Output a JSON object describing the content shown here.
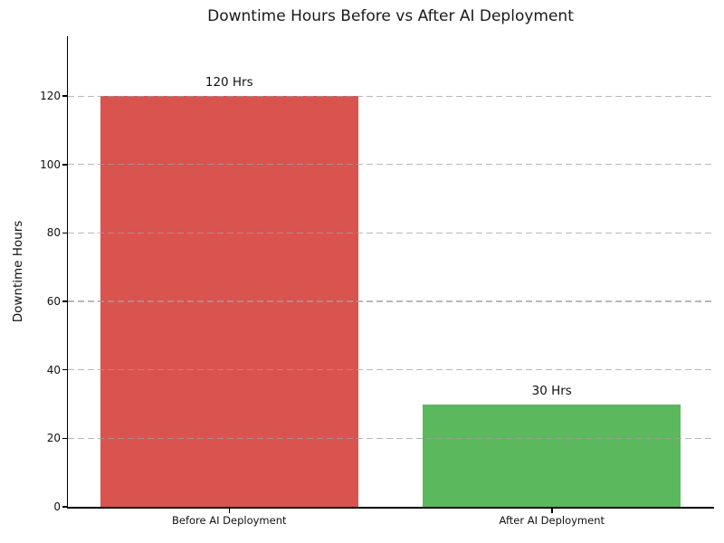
{
  "chart_data": {
    "type": "bar",
    "title": "Downtime Hours Before vs After AI Deployment",
    "xlabel": "",
    "ylabel": "Downtime Hours",
    "categories": [
      "Before AI Deployment",
      "After AI Deployment"
    ],
    "values": [
      120,
      30
    ],
    "bar_value_labels": [
      "120 Hrs",
      "30 Hrs"
    ],
    "bar_colors": [
      "#d9534f",
      "#5cb85c"
    ],
    "ylim": [
      0,
      137.5
    ],
    "yticks": [
      0,
      20,
      40,
      60,
      80,
      100,
      120
    ],
    "grid": {
      "axis": "y",
      "style": "dashed",
      "color": "#cccccc",
      "drawn_over_bars": true
    },
    "legend": "none",
    "background_color": "#ffffff",
    "spine_color": "#000000"
  }
}
